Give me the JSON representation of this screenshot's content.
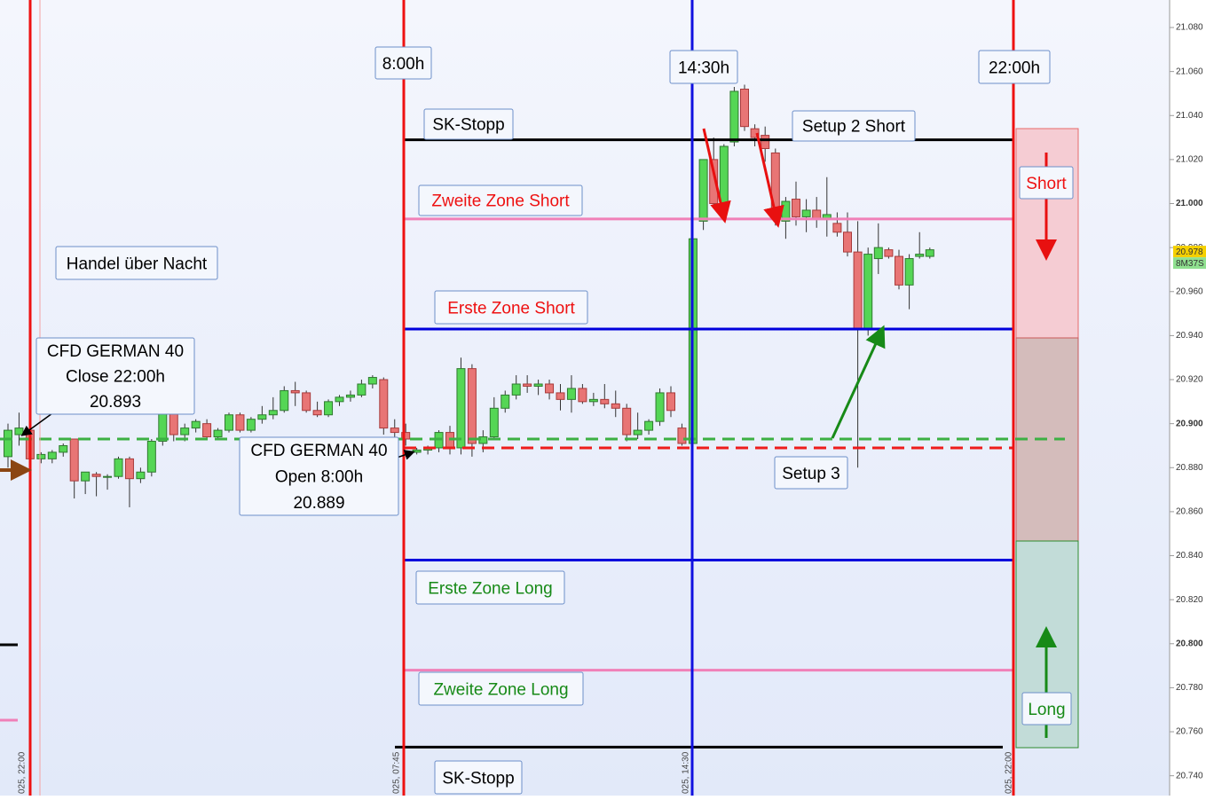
{
  "chart_data": {
    "type": "candlestick",
    "ylim": [
      20.731,
      21.0925
    ],
    "yticks": [
      {
        "value": 21.08,
        "label": "21.080"
      },
      {
        "value": 21.06,
        "label": "21.060"
      },
      {
        "value": 21.04,
        "label": "21.040"
      },
      {
        "value": 21.02,
        "label": "21.020"
      },
      {
        "value": 21.0,
        "label": "21.000"
      },
      {
        "value": 20.98,
        "label": "20.980"
      },
      {
        "value": 20.96,
        "label": "20.960"
      },
      {
        "value": 20.94,
        "label": "20.940"
      },
      {
        "value": 20.92,
        "label": "20.920"
      },
      {
        "value": 20.9,
        "label": "20.900"
      },
      {
        "value": 20.88,
        "label": "20.880"
      },
      {
        "value": 20.86,
        "label": "20.860"
      },
      {
        "value": 20.84,
        "label": "20.840"
      },
      {
        "value": 20.82,
        "label": "20.820"
      },
      {
        "value": 20.8,
        "label": "20.800"
      },
      {
        "value": 20.78,
        "label": "20.780"
      },
      {
        "value": 20.76,
        "label": "20.760"
      },
      {
        "value": 20.74,
        "label": "20.740"
      }
    ],
    "up_color": "#55d655",
    "down_color": "#e87575",
    "ohlc": [
      [
        20.885,
        20.9,
        20.88,
        20.897
      ],
      [
        20.895,
        20.905,
        20.89,
        20.898
      ],
      [
        20.897,
        20.9,
        20.882,
        20.884
      ],
      [
        20.884,
        20.887,
        20.882,
        20.886
      ],
      [
        20.884,
        20.888,
        20.882,
        20.887
      ],
      [
        20.887,
        20.891,
        20.885,
        20.89
      ],
      [
        20.893,
        20.893,
        20.866,
        20.874
      ],
      [
        20.874,
        20.878,
        20.868,
        20.878
      ],
      [
        20.877,
        20.878,
        20.867,
        20.876
      ],
      [
        20.876,
        20.877,
        20.87,
        20.876
      ],
      [
        20.876,
        20.885,
        20.875,
        20.884
      ],
      [
        20.884,
        20.885,
        20.862,
        20.875
      ],
      [
        20.875,
        20.88,
        20.873,
        20.878
      ],
      [
        20.878,
        20.893,
        20.876,
        20.892
      ],
      [
        20.892,
        20.906,
        20.89,
        20.905
      ],
      [
        20.905,
        20.906,
        20.892,
        20.895
      ],
      [
        20.895,
        20.9,
        20.892,
        20.898
      ],
      [
        20.898,
        20.902,
        20.896,
        20.901
      ],
      [
        20.9,
        20.902,
        20.893,
        20.894
      ],
      [
        20.894,
        20.898,
        20.893,
        20.897
      ],
      [
        20.897,
        20.905,
        20.896,
        20.904
      ],
      [
        20.904,
        20.905,
        20.896,
        20.897
      ],
      [
        20.897,
        20.903,
        20.896,
        20.902
      ],
      [
        20.902,
        20.908,
        20.9,
        20.904
      ],
      [
        20.904,
        20.912,
        20.902,
        20.906
      ],
      [
        20.906,
        20.917,
        20.905,
        20.915
      ],
      [
        20.915,
        20.919,
        20.908,
        20.914
      ],
      [
        20.914,
        20.915,
        20.905,
        20.906
      ],
      [
        20.906,
        20.91,
        20.903,
        20.904
      ],
      [
        20.904,
        20.911,
        20.903,
        20.91
      ],
      [
        20.91,
        20.913,
        20.908,
        20.912
      ],
      [
        20.912,
        20.915,
        20.91,
        20.913
      ],
      [
        20.913,
        20.92,
        20.912,
        20.918
      ],
      [
        20.918,
        20.922,
        20.916,
        20.921
      ],
      [
        20.92,
        20.921,
        20.895,
        20.898
      ],
      [
        20.898,
        20.902,
        20.894,
        20.896
      ],
      [
        20.896,
        20.9,
        20.89,
        20.893
      ],
      [
        20.887,
        20.889,
        20.886,
        20.888
      ],
      [
        20.888,
        20.89,
        20.886,
        20.889
      ],
      [
        20.889,
        20.897,
        20.887,
        20.896
      ],
      [
        20.896,
        20.899,
        20.886,
        20.889
      ],
      [
        20.889,
        20.93,
        20.886,
        20.925
      ],
      [
        20.925,
        20.927,
        20.885,
        20.891
      ],
      [
        20.891,
        20.897,
        20.887,
        20.894
      ],
      [
        20.894,
        20.912,
        20.893,
        20.907
      ],
      [
        20.907,
        20.915,
        20.905,
        20.913
      ],
      [
        20.913,
        20.922,
        20.911,
        20.918
      ],
      [
        20.918,
        20.922,
        20.914,
        20.917
      ],
      [
        20.917,
        20.92,
        20.913,
        20.918
      ],
      [
        20.918,
        20.92,
        20.911,
        20.914
      ],
      [
        20.914,
        20.918,
        20.906,
        20.911
      ],
      [
        20.911,
        20.922,
        20.905,
        20.916
      ],
      [
        20.916,
        20.918,
        20.909,
        20.91
      ],
      [
        20.91,
        20.914,
        20.908,
        20.911
      ],
      [
        20.911,
        20.918,
        20.907,
        20.909
      ],
      [
        20.909,
        20.915,
        20.903,
        20.907
      ],
      [
        20.907,
        20.909,
        20.892,
        20.895
      ],
      [
        20.895,
        20.905,
        20.893,
        20.897
      ],
      [
        20.897,
        20.902,
        20.895,
        20.901
      ],
      [
        20.901,
        20.916,
        20.899,
        20.914
      ],
      [
        20.914,
        20.917,
        20.903,
        20.906
      ],
      [
        20.898,
        20.9,
        20.89,
        20.891
      ],
      [
        20.891,
        20.984,
        20.89,
        20.984
      ],
      [
        20.992,
        21.02,
        20.988,
        21.02
      ],
      [
        21.02,
        21.03,
        20.998,
        21.0
      ],
      [
        21.0,
        21.027,
        20.998,
        21.026
      ],
      [
        21.028,
        21.053,
        21.026,
        21.051
      ],
      [
        21.052,
        21.054,
        21.033,
        21.035
      ],
      [
        21.034,
        21.036,
        21.026,
        21.03
      ],
      [
        21.031,
        21.035,
        21.019,
        21.025
      ],
      [
        21.023,
        21.025,
        20.99,
        20.993
      ],
      [
        20.992,
        21.003,
        20.984,
        21.001
      ],
      [
        21.002,
        21.01,
        20.99,
        20.994
      ],
      [
        20.994,
        21.002,
        20.987,
        20.997
      ],
      [
        20.997,
        21.003,
        20.989,
        20.993
      ],
      [
        20.993,
        21.012,
        20.985,
        20.995
      ],
      [
        20.991,
        20.996,
        20.985,
        20.987
      ],
      [
        20.987,
        20.996,
        20.976,
        20.978
      ],
      [
        20.978,
        20.992,
        20.88,
        20.943
      ],
      [
        20.943,
        20.98,
        20.94,
        20.977
      ],
      [
        20.975,
        20.991,
        20.968,
        20.98
      ],
      [
        20.979,
        20.98,
        20.975,
        20.976
      ],
      [
        20.976,
        20.979,
        20.961,
        20.963
      ],
      [
        20.963,
        20.977,
        20.952,
        20.975
      ],
      [
        20.976,
        20.987,
        20.975,
        20.977
      ],
      [
        20.976,
        20.98,
        20.975,
        20.979
      ]
    ],
    "levels": [
      {
        "label": "SK-Stopp",
        "value": 21.029,
        "color": "#000000"
      },
      {
        "label": "Zweite Zone Short",
        "value": 20.993,
        "color": "#f080b8"
      },
      {
        "label": "Erste Zone Short",
        "value": 20.943,
        "color": "#0000dd"
      },
      {
        "label": "Erste Zone Long",
        "value": 20.838,
        "color": "#0000dd"
      },
      {
        "label": "Zweite Zone Long",
        "value": 20.788,
        "color": "#f080b8"
      },
      {
        "label": "SK-Stopp",
        "value": 20.753,
        "color": "#000000"
      }
    ],
    "close": {
      "lines": [
        "CFD GERMAN 40",
        "Close 22:00h"
      ],
      "value": 20.893,
      "color": "#3cb043"
    },
    "open": {
      "lines": [
        "CFD GERMAN 40",
        "Open 8:00h"
      ],
      "value": 20.889,
      "color": "#ee1c1c"
    },
    "time_labels": [
      "8:00h",
      "14:30h",
      "22:00h"
    ],
    "x_labels": [
      "025, 22:00",
      "025, 07:45",
      "025, 14:30",
      "025, 22:00"
    ],
    "notes": [
      "Handel über Nacht",
      "Setup 2 Short",
      "Setup 3",
      "Short",
      "Long"
    ],
    "last_price": 20.978,
    "countdown": "8M37S"
  }
}
